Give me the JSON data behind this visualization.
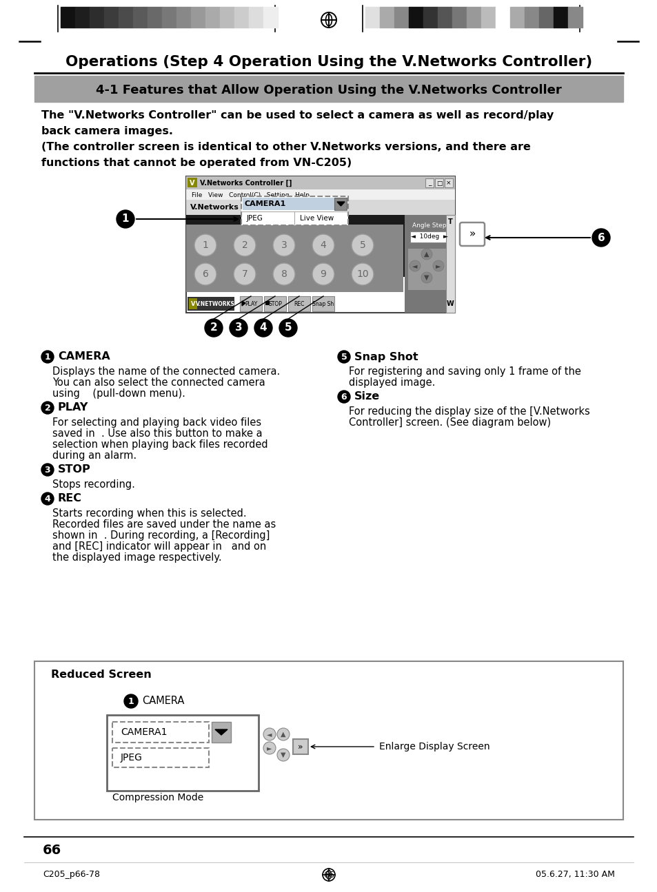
{
  "page_title": "Operations (Step 4 Operation Using the V.Networks Controller)",
  "section_title": "4-1 Features that Allow Operation Using the V.Networks Controller",
  "para1_bold": "The \"V.Networks Controller\" can be used to select a camera as well as record/play\nback camera images.",
  "para2": "(The controller screen is identical to other V.Networks versions, and there are\nfunctions that cannot be operated from VN-C205)",
  "items": [
    {
      "num": "1",
      "title": "CAMERA",
      "body": "Displays the name of the connected camera.\nYou can also select the connected camera\nusing    (pull-down menu)."
    },
    {
      "num": "2",
      "title": "PLAY",
      "body": "For selecting and playing back video files\nsaved in  . Use also this button to make a\nselection when playing back files recorded\nduring an alarm."
    },
    {
      "num": "3",
      "title": "STOP",
      "body": "Stops recording."
    },
    {
      "num": "4",
      "title": "REC",
      "body": "Starts recording when this is selected.\nRecorded files are saved under the name as\nshown in  . During recording, a [Recording]\nand [REC] indicator will appear in   and on\nthe displayed image respectively."
    },
    {
      "num": "5",
      "title": "Snap Shot",
      "body": "For registering and saving only 1 frame of the\ndisplayed image."
    },
    {
      "num": "6",
      "title": "Size",
      "body": "For reducing the display size of the [V.Networks\nController] screen. (See diagram below)"
    }
  ],
  "reduced_screen_label": "Reduced Screen",
  "camera_label": "CAMERA",
  "camera1_text": "CAMERA1",
  "jpeg_text": "JPEG",
  "live_view_text": "Live View",
  "enlarge_label": "Enlarge Display Screen",
  "compression_label": "Compression Mode",
  "page_number": "66",
  "footer_left": "C205_p66-78",
  "footer_center": "66",
  "footer_right": "05.6.27, 11:30 AM",
  "bg_color": "#ffffff",
  "section_bg": "#a0a0a0",
  "header_bar_colors_left": [
    "#111111",
    "#1e1e1e",
    "#2d2d2d",
    "#3c3c3c",
    "#4b4b4b",
    "#5a5a5a",
    "#696969",
    "#787878",
    "#888888",
    "#999999",
    "#aaaaaa",
    "#bbbbbb",
    "#cccccc",
    "#dddddd",
    "#eeeeee"
  ],
  "header_bar_colors_right": [
    "#e0e0e0",
    "#aaaaaa",
    "#888888",
    "#111111",
    "#333333",
    "#555555",
    "#777777",
    "#999999",
    "#bbbbbb",
    "#ffffff",
    "#aaaaaa",
    "#888888",
    "#666666",
    "#111111",
    "#888888"
  ]
}
